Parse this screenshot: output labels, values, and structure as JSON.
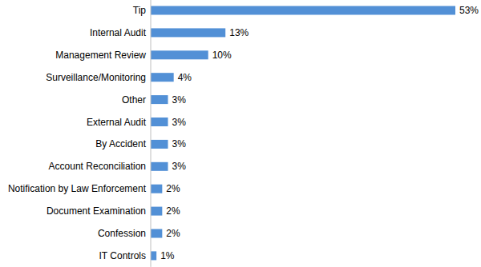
{
  "chart_data": {
    "type": "bar",
    "orientation": "horizontal",
    "categories": [
      "Tip",
      "Internal Audit",
      "Management Review",
      "Surveillance/Monitoring",
      "Other",
      "External Audit",
      "By Accident",
      "Account Reconciliation",
      "Notification by Law Enforcement",
      "Document Examination",
      "Confession",
      "IT Controls"
    ],
    "values": [
      53,
      13,
      10,
      4,
      3,
      3,
      3,
      3,
      2,
      2,
      2,
      1
    ],
    "value_labels": [
      "53%",
      "13%",
      "10%",
      "4%",
      "3%",
      "3%",
      "3%",
      "3%",
      "2%",
      "2%",
      "2%",
      "1%"
    ],
    "color": "#5290d6",
    "xlim": [
      0,
      53
    ],
    "data_labels": true,
    "tick_labels": "y",
    "grid": false
  }
}
